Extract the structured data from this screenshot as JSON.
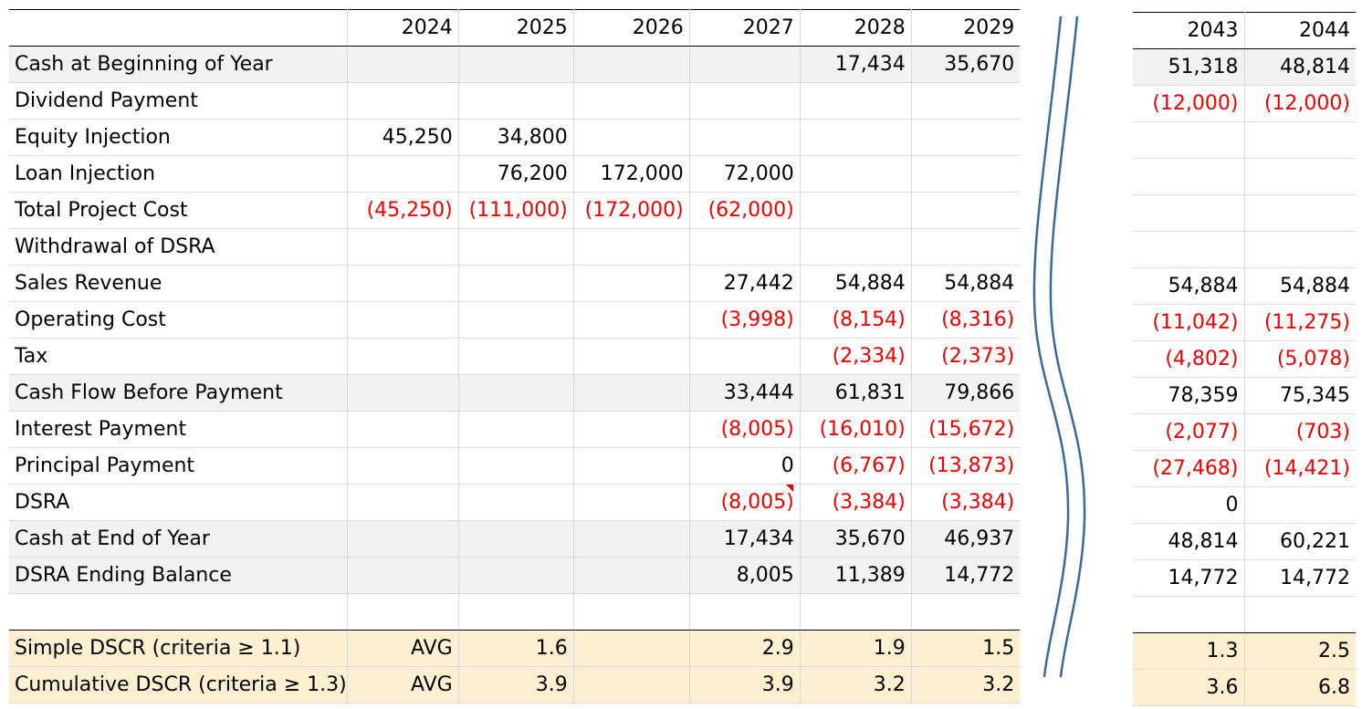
{
  "main": {
    "years": [
      "2024",
      "2025",
      "2026",
      "2027",
      "2028",
      "2029"
    ],
    "rows": [
      {
        "label": "Cash at Beginning of Year",
        "style": "gray",
        "cells": [
          "",
          "",
          "",
          "",
          "17,434",
          "35,670"
        ]
      },
      {
        "label": "Dividend Payment",
        "style": "",
        "cells": [
          "",
          "",
          "",
          "",
          "",
          ""
        ]
      },
      {
        "label": "Equity Injection",
        "style": "",
        "cells": [
          "45,250",
          "34,800",
          "",
          "",
          "",
          ""
        ]
      },
      {
        "label": "Loan Injection",
        "style": "",
        "cells": [
          "",
          "76,200",
          "172,000",
          "72,000",
          "",
          ""
        ]
      },
      {
        "label": "Total Project Cost",
        "style": "",
        "cells": [
          "(45,250)",
          "(111,000)",
          "(172,000)",
          "(62,000)",
          "",
          ""
        ]
      },
      {
        "label": "Withdrawal of DSRA",
        "style": "",
        "cells": [
          "",
          "",
          "",
          "",
          "",
          ""
        ]
      },
      {
        "label": "Sales Revenue",
        "style": "",
        "cells": [
          "",
          "",
          "",
          "27,442",
          "54,884",
          "54,884"
        ]
      },
      {
        "label": "Operating Cost",
        "style": "",
        "cells": [
          "",
          "",
          "",
          "(3,998)",
          "(8,154)",
          "(8,316)"
        ]
      },
      {
        "label": "Tax",
        "style": "",
        "cells": [
          "",
          "",
          "",
          "",
          "(2,334)",
          "(2,373)"
        ]
      },
      {
        "label": "Cash Flow Before Payment",
        "style": "gray",
        "cells": [
          "",
          "",
          "",
          "33,444",
          "61,831",
          "79,866"
        ]
      },
      {
        "label": "Interest Payment",
        "style": "",
        "cells": [
          "",
          "",
          "",
          "(8,005)",
          "(16,010)",
          "(15,672)"
        ]
      },
      {
        "label": "Principal Payment",
        "style": "",
        "cells": [
          "",
          "",
          "",
          "0",
          "(6,767)",
          "(13,873)"
        ]
      },
      {
        "label": "DSRA",
        "style": "",
        "cells": [
          "",
          "",
          "",
          "(8,005)",
          "(3,384)",
          "(3,384)"
        ]
      },
      {
        "label": "Cash at End of Year",
        "style": "gray",
        "cells": [
          "",
          "",
          "",
          "17,434",
          "35,670",
          "46,937"
        ]
      },
      {
        "label": "DSRA Ending Balance",
        "style": "gray",
        "cells": [
          "",
          "",
          "",
          "8,005",
          "11,389",
          "14,772"
        ]
      },
      {
        "label": "",
        "style": "blank",
        "cells": [
          "",
          "",
          "",
          "",
          "",
          ""
        ]
      },
      {
        "label": "Simple DSCR (criteria ≥ 1.1)",
        "style": "yel",
        "cells": [
          "AVG",
          "1.6",
          "",
          "2.9",
          "1.9",
          "1.5"
        ]
      },
      {
        "label": "Cumulative DSCR (criteria ≥ 1.3)",
        "style": "yel",
        "cells": [
          "AVG",
          "3.9",
          "",
          "3.9",
          "3.2",
          "3.2"
        ]
      }
    ]
  },
  "right": {
    "years": [
      "2043",
      "2044"
    ],
    "rows": [
      {
        "style": "gray",
        "cells": [
          "51,318",
          "48,814"
        ]
      },
      {
        "style": "",
        "cells": [
          "(12,000)",
          "(12,000)"
        ]
      },
      {
        "style": "",
        "cells": [
          "",
          ""
        ]
      },
      {
        "style": "",
        "cells": [
          "",
          ""
        ]
      },
      {
        "style": "",
        "cells": [
          "",
          ""
        ]
      },
      {
        "style": "",
        "cells": [
          "",
          ""
        ]
      },
      {
        "style": "",
        "cells": [
          "54,884",
          "54,884"
        ]
      },
      {
        "style": "",
        "cells": [
          "(11,042)",
          "(11,275)"
        ]
      },
      {
        "style": "",
        "cells": [
          "(4,802)",
          "(5,078)"
        ]
      },
      {
        "style": "",
        "cells": [
          "78,359",
          "75,345"
        ]
      },
      {
        "style": "",
        "cells": [
          "(2,077)",
          "(703)"
        ]
      },
      {
        "style": "",
        "cells": [
          "(27,468)",
          "(14,421)"
        ]
      },
      {
        "style": "",
        "cells": [
          "0",
          ""
        ]
      },
      {
        "style": "",
        "cells": [
          "48,814",
          "60,221"
        ]
      },
      {
        "style": "",
        "cells": [
          "14,772",
          "14,772"
        ]
      },
      {
        "style": "blank",
        "cells": [
          "",
          ""
        ]
      },
      {
        "style": "yel",
        "cells": [
          "1.3",
          "2.5"
        ]
      },
      {
        "style": "yel",
        "cells": [
          "3.6",
          "6.8"
        ]
      }
    ]
  },
  "colors": {
    "negative": "#ee0000",
    "gray_row": "#f2f2f2",
    "dscr_row": "#fdf0d0",
    "break_line": "#3a6a9a"
  }
}
